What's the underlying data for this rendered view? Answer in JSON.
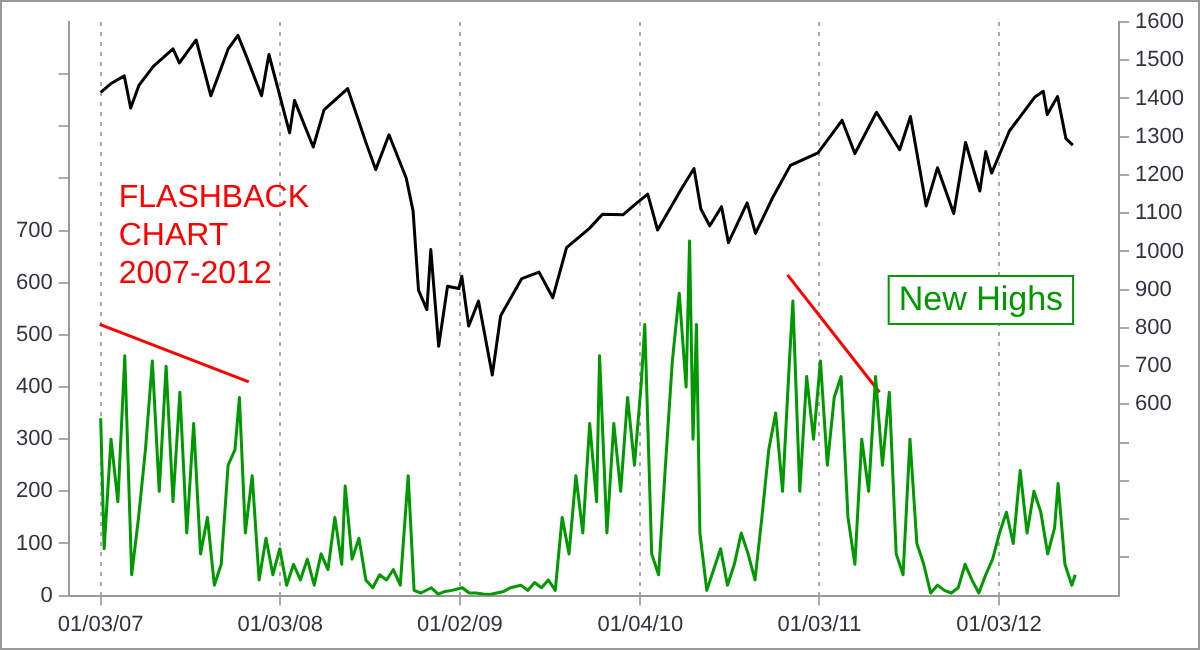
{
  "chart_data": {
    "type": "line",
    "annotations": [
      "FLASHBACK CHART 2007-2012"
    ],
    "xlim": [
      "2006-10-30",
      "2012-09-03"
    ],
    "xticks": [
      {
        "value": "2007-01-03",
        "label": "01/03/07"
      },
      {
        "value": "2008-01-03",
        "label": "01/03/08"
      },
      {
        "value": "2009-01-02",
        "label": "01/02/09"
      },
      {
        "value": "2010-01-04",
        "label": "01/04/10"
      },
      {
        "value": "2011-01-03",
        "label": "01/03/11"
      },
      {
        "value": "2012-01-03",
        "label": "01/03/12"
      }
    ],
    "ylim": [
      0,
      1100
    ],
    "yticks": [
      0,
      100,
      200,
      300,
      400,
      500,
      600,
      700,
      {
        "value": 800,
        "label": null
      },
      {
        "value": 900,
        "label": null
      },
      {
        "value": 1000,
        "label": null
      }
    ],
    "y2lim": [
      100,
      1600
    ],
    "y2ticks": [
      {
        "value": 200,
        "label": null
      },
      {
        "value": 300,
        "label": null
      },
      {
        "value": 400,
        "label": null
      },
      {
        "value": 500,
        "label": null
      },
      600,
      700,
      800,
      900,
      1000,
      1100,
      1200,
      1300,
      1400,
      1500,
      1600
    ],
    "grid": "x",
    "marker": "none",
    "line_style": "solid",
    "series": [
      {
        "color": "#000000",
        "axis": "y2",
        "x": [
          "2007-01-03",
          "2007-01-25",
          "2007-02-20",
          "2007-03-05",
          "2007-03-22",
          "2007-04-20",
          "2007-05-30",
          "2007-06-12",
          "2007-07-16",
          "2007-08-15",
          "2007-09-19",
          "2007-10-09",
          "2007-10-25",
          "2007-11-26",
          "2007-12-11",
          "2008-01-22",
          "2008-02-01",
          "2008-03-10",
          "2008-04-01",
          "2008-05-19",
          "2008-06-27",
          "2008-07-15",
          "2008-08-11",
          "2008-09-15",
          "2008-09-29",
          "2008-10-10",
          "2008-10-27",
          "2008-11-04",
          "2008-11-20",
          "2008-12-08",
          "2008-12-31",
          "2009-01-06",
          "2009-01-20",
          "2009-02-09",
          "2009-03-09",
          "2009-03-26",
          "2009-05-08",
          "2009-06-12",
          "2009-07-10",
          "2009-08-07",
          "2009-09-23",
          "2009-10-19",
          "2009-11-30",
          "2009-12-28",
          "2010-01-19",
          "2010-02-08",
          "2010-03-31",
          "2010-04-23",
          "2010-05-07",
          "2010-05-25",
          "2010-06-18",
          "2010-07-02",
          "2010-08-09",
          "2010-08-26",
          "2010-09-30",
          "2010-11-05",
          "2010-12-31",
          "2011-02-18",
          "2011-03-16",
          "2011-04-29",
          "2011-06-15",
          "2011-07-07",
          "2011-08-08",
          "2011-08-31",
          "2011-10-03",
          "2011-10-27",
          "2011-11-25",
          "2011-12-07",
          "2011-12-19",
          "2012-01-24",
          "2012-03-16",
          "2012-04-02",
          "2012-04-10",
          "2012-05-01",
          "2012-05-18",
          "2012-06-01"
        ],
        "values": [
          1416,
          1440,
          1459,
          1375,
          1435,
          1484,
          1530,
          1493,
          1553,
          1407,
          1529,
          1565,
          1514,
          1407,
          1515,
          1310,
          1395,
          1273,
          1370,
          1426,
          1278,
          1214,
          1305,
          1192,
          1106,
          899,
          848,
          1005,
          752,
          909,
          903,
          935,
          805,
          870,
          677,
          832,
          929,
          946,
          879,
          1010,
          1061,
          1097,
          1096,
          1127,
          1150,
          1056,
          1169,
          1217,
          1111,
          1067,
          1117,
          1023,
          1127,
          1047,
          1141,
          1225,
          1258,
          1343,
          1256,
          1364,
          1266,
          1353,
          1119,
          1219,
          1099,
          1285,
          1158,
          1261,
          1205,
          1315,
          1404,
          1419,
          1358,
          1405,
          1295,
          1278
        ]
      },
      {
        "name": "New Highs",
        "color": "#009900",
        "axis": "y",
        "x": [
          "2007-01-03",
          "2007-01-10",
          "2007-01-24",
          "2007-02-07",
          "2007-02-21",
          "2007-03-07",
          "2007-03-21",
          "2007-04-04",
          "2007-04-18",
          "2007-05-02",
          "2007-05-16",
          "2007-05-30",
          "2007-06-13",
          "2007-06-27",
          "2007-07-11",
          "2007-07-25",
          "2007-08-08",
          "2007-08-22",
          "2007-09-05",
          "2007-09-19",
          "2007-10-03",
          "2007-10-12",
          "2007-10-24",
          "2007-11-07",
          "2007-11-21",
          "2007-12-05",
          "2007-12-19",
          "2008-01-02",
          "2008-01-16",
          "2008-01-30",
          "2008-02-13",
          "2008-02-27",
          "2008-03-12",
          "2008-03-26",
          "2008-04-09",
          "2008-04-23",
          "2008-05-07",
          "2008-05-14",
          "2008-05-28",
          "2008-06-11",
          "2008-06-25",
          "2008-07-09",
          "2008-07-23",
          "2008-08-06",
          "2008-08-20",
          "2008-09-03",
          "2008-09-19",
          "2008-10-01",
          "2008-10-15",
          "2008-11-05",
          "2008-11-19",
          "2008-12-03",
          "2008-12-17",
          "2009-01-07",
          "2009-01-21",
          "2009-02-04",
          "2009-02-18",
          "2009-03-04",
          "2009-03-18",
          "2009-04-01",
          "2009-04-15",
          "2009-05-06",
          "2009-05-20",
          "2009-06-03",
          "2009-06-17",
          "2009-07-01",
          "2009-07-15",
          "2009-07-29",
          "2009-08-12",
          "2009-08-26",
          "2009-09-09",
          "2009-09-23",
          "2009-10-07",
          "2009-10-13",
          "2009-10-28",
          "2009-11-11",
          "2009-11-25",
          "2009-12-09",
          "2009-12-23",
          "2010-01-06",
          "2010-01-13",
          "2010-01-27",
          "2010-02-10",
          "2010-02-24",
          "2010-03-10",
          "2010-03-24",
          "2010-04-07",
          "2010-04-14",
          "2010-04-21",
          "2010-04-28",
          "2010-05-05",
          "2010-05-19",
          "2010-06-02",
          "2010-06-16",
          "2010-06-30",
          "2010-07-14",
          "2010-07-28",
          "2010-08-11",
          "2010-08-25",
          "2010-09-08",
          "2010-09-22",
          "2010-10-06",
          "2010-10-20",
          "2010-11-03",
          "2010-11-10",
          "2010-11-24",
          "2010-12-08",
          "2010-12-22",
          "2011-01-05",
          "2011-01-19",
          "2011-02-02",
          "2011-02-16",
          "2011-03-02",
          "2011-03-16",
          "2011-03-30",
          "2011-04-13",
          "2011-04-27",
          "2011-05-11",
          "2011-05-25",
          "2011-06-08",
          "2011-06-22",
          "2011-07-06",
          "2011-07-20",
          "2011-08-03",
          "2011-08-17",
          "2011-08-31",
          "2011-09-14",
          "2011-09-28",
          "2011-10-12",
          "2011-10-26",
          "2011-11-09",
          "2011-11-23",
          "2011-12-07",
          "2011-12-21",
          "2012-01-04",
          "2012-01-18",
          "2012-02-01",
          "2012-02-15",
          "2012-02-29",
          "2012-03-14",
          "2012-03-28",
          "2012-04-11",
          "2012-04-25",
          "2012-05-02",
          "2012-05-16",
          "2012-05-30",
          "2012-06-06"
        ],
        "values": [
          340,
          90,
          300,
          180,
          460,
          40,
          150,
          280,
          450,
          200,
          440,
          180,
          390,
          120,
          330,
          80,
          150,
          20,
          60,
          250,
          280,
          380,
          120,
          230,
          30,
          110,
          40,
          90,
          20,
          60,
          30,
          70,
          20,
          80,
          50,
          150,
          60,
          210,
          70,
          110,
          30,
          15,
          40,
          30,
          50,
          20,
          230,
          10,
          5,
          15,
          3,
          8,
          10,
          15,
          5,
          5,
          3,
          2,
          5,
          8,
          15,
          20,
          10,
          25,
          15,
          30,
          10,
          150,
          80,
          230,
          120,
          330,
          180,
          460,
          120,
          330,
          200,
          380,
          250,
          410,
          520,
          80,
          40,
          250,
          450,
          580,
          400,
          680,
          300,
          520,
          120,
          10,
          50,
          90,
          20,
          60,
          120,
          80,
          30,
          150,
          280,
          350,
          200,
          450,
          565,
          200,
          420,
          300,
          450,
          250,
          380,
          420,
          150,
          60,
          300,
          200,
          420,
          250,
          390,
          80,
          40,
          300,
          100,
          60,
          5,
          20,
          10,
          5,
          15,
          60,
          30,
          5,
          40,
          70,
          120,
          160,
          100,
          240,
          120,
          200,
          160,
          80,
          130,
          215,
          60,
          20,
          40
        ]
      },
      {
        "type": "line",
        "color": "#ff0000",
        "axis": "y",
        "x": [
          "2007-01-01",
          "2007-10-31"
        ],
        "values": [
          520,
          410
        ]
      },
      {
        "type": "line",
        "color": "#ff0000",
        "axis": "y",
        "x": [
          "2010-10-30",
          "2011-05-05"
        ],
        "values": [
          615,
          390
        ]
      }
    ]
  }
}
